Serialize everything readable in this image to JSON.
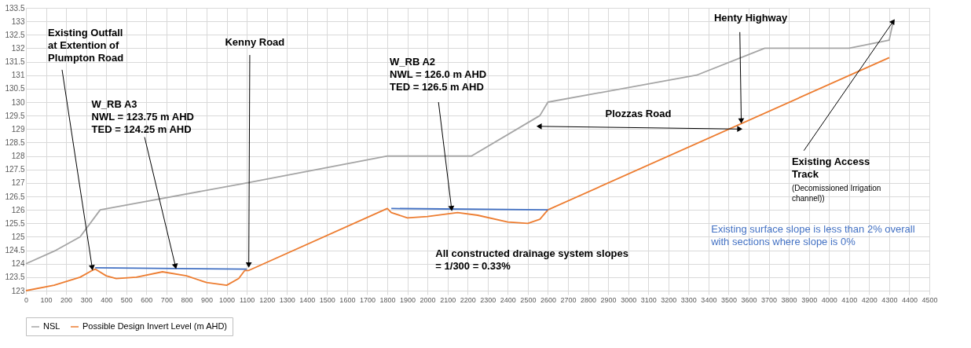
{
  "chart_data": {
    "type": "line",
    "series": [
      {
        "name": "NSL",
        "color": "#a5a5a5",
        "x": [
          0,
          150,
          270,
          370,
          1100,
          1800,
          2220,
          2560,
          2600,
          3340,
          3680,
          4100,
          4300,
          4320
        ],
        "values": [
          124,
          124.5,
          125,
          126,
          127,
          128,
          128,
          129.5,
          130,
          131,
          132,
          132,
          132.3,
          133
        ]
      },
      {
        "name": "Possible Design Invert Level (m AHD)",
        "color": "#ed7d31",
        "x": [
          0,
          140,
          270,
          330,
          345,
          400,
          450,
          550,
          680,
          800,
          900,
          1000,
          1060,
          1090,
          1110,
          1800,
          1820,
          1900,
          2000,
          2150,
          2250,
          2400,
          2500,
          2560,
          2600,
          4300
        ],
        "values": [
          123,
          123.2,
          123.5,
          123.75,
          123.8,
          123.55,
          123.45,
          123.5,
          123.7,
          123.55,
          123.3,
          123.2,
          123.45,
          123.75,
          123.75,
          126.05,
          125.9,
          125.7,
          125.75,
          125.9,
          125.8,
          125.55,
          125.5,
          125.65,
          126,
          131.65
        ]
      },
      {
        "color": "#4472c4",
        "x": [
          345,
          1100
        ],
        "values": [
          123.85,
          123.8
        ]
      },
      {
        "color": "#4472c4",
        "x": [
          1820,
          2600
        ],
        "values": [
          126.05,
          126.0
        ]
      }
    ],
    "xlim": [
      0,
      4500
    ],
    "xticks": [
      0,
      100,
      200,
      300,
      400,
      500,
      600,
      700,
      800,
      900,
      1000,
      1100,
      1200,
      1300,
      1400,
      1500,
      1600,
      1700,
      1800,
      1900,
      2000,
      2100,
      2200,
      2300,
      2400,
      2500,
      2600,
      2700,
      2800,
      2900,
      3000,
      3100,
      3200,
      3300,
      3400,
      3500,
      3600,
      3700,
      3800,
      3900,
      4000,
      4100,
      4200,
      4300,
      4400,
      4500
    ],
    "ylim": [
      123,
      133.5
    ],
    "yticks": [
      123,
      123.5,
      124,
      124.5,
      125,
      125.5,
      126,
      126.5,
      127,
      127.5,
      128,
      128.5,
      129,
      129.5,
      130,
      130.5,
      131,
      131.5,
      132,
      132.5,
      133,
      133.5
    ],
    "grid": true,
    "legend": "bottom",
    "annotations": [
      {
        "text": "Existing Outfall\nat Extention of\nPlumpton Road",
        "x": 330,
        "y": 123.85
      },
      {
        "text": "Kenny Road",
        "x": 1110,
        "y": 123.95
      },
      {
        "text": "W_RB A3\nNWL = 123.75 m AHD\nTED = 124.25 m AHD",
        "x": 745,
        "y": 123.9
      },
      {
        "text": "W_RB A2\nNWL = 126.0 m AHD\nTED = 126.5 m AHD",
        "x": 2120,
        "y": 126.05
      },
      {
        "text": "Henty Highway",
        "x": 3563,
        "y": 129.3
      },
      "Plozzas Road",
      {
        "text": "Existing Access\nTrack",
        "x": 4320,
        "y": 133
      },
      "(Decomissioned Irrigation\nchannel))",
      "Existing surface slope is less than 2% overall\nwith sections where slope is 0%",
      "All constructed drainage system slopes\n = 1/300 = 0.33%"
    ]
  }
}
